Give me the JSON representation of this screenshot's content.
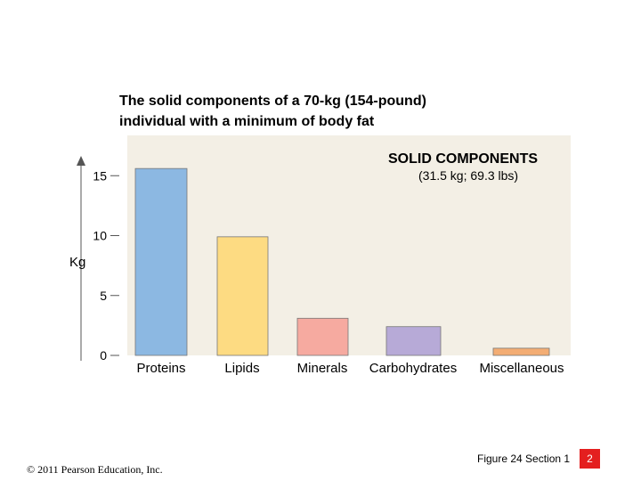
{
  "title_lines": [
    "The solid components of a 70-kg (154-pound)",
    "individual with a minimum of body fat"
  ],
  "chart_data": {
    "type": "bar",
    "title": "SOLID COMPONENTS",
    "subtitle": "(31.5 kg; 69.3 lbs)",
    "ylabel": "Kg",
    "xlabel": "",
    "categories": [
      "Proteins",
      "Lipids",
      "Minerals",
      "Carbohydrates",
      "Miscellaneous"
    ],
    "values": [
      15.6,
      9.9,
      3.1,
      2.4,
      0.6
    ],
    "colors": [
      "#8cb8e2",
      "#fddb82",
      "#f6aaa0",
      "#b7aad7",
      "#f3ad74"
    ],
    "yticks": [
      0,
      5,
      10,
      15
    ],
    "ylim": [
      0,
      16.5
    ],
    "grid": false,
    "background": "#f3efe5"
  },
  "footer": {
    "copyright": "© 2011 Pearson Education, Inc.",
    "figure_ref": "Figure 24 Section 1",
    "page_number": "2"
  }
}
